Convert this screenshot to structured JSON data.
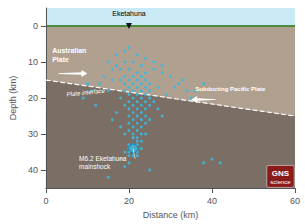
{
  "chart_data": {
    "type": "scatter",
    "x_label": "Distance (km)",
    "y_label": "Depth (km)",
    "xlim": [
      0,
      60
    ],
    "ylim": [
      45,
      -5
    ],
    "xticks": [
      0,
      20,
      40,
      60
    ],
    "yticks": [
      0,
      10,
      20,
      30,
      40
    ],
    "grid": false,
    "annotations": [
      "Plate interface",
      "Australian\nPlate",
      "Subducting Pacific Plate",
      "Eketahuna",
      "M6.2 Eketahuna\nmainshock",
      "GNS",
      "science"
    ],
    "series": [
      {
        "type": "scatter",
        "color": "#3ab8e0",
        "marker": "circle",
        "x": [
          20,
          22,
          19,
          21,
          23,
          18,
          20,
          22,
          24,
          19,
          21,
          23,
          20,
          22,
          24,
          18,
          25,
          19,
          21,
          23,
          20,
          22,
          24,
          21,
          23,
          25,
          19,
          20,
          22,
          24,
          21,
          23,
          25,
          20,
          22,
          24,
          19,
          21,
          23,
          25,
          20,
          22,
          24,
          21,
          23,
          20,
          22,
          24,
          21,
          23,
          25,
          20,
          22,
          24,
          21,
          23,
          20,
          22,
          21,
          23,
          22,
          21,
          22,
          21,
          22,
          20,
          21,
          22,
          20,
          23,
          21,
          22,
          20,
          19,
          21,
          22,
          20,
          30,
          32,
          28,
          26,
          34,
          27,
          29,
          31,
          33,
          35,
          36,
          38,
          15,
          16,
          14,
          13,
          17,
          16,
          15,
          40,
          42,
          38,
          25,
          15,
          10,
          11,
          9,
          12,
          17,
          19,
          24,
          26,
          28,
          18,
          26,
          27,
          28,
          17,
          16,
          18,
          19,
          23,
          24,
          22,
          20,
          18,
          19
        ],
        "values": [
          6,
          8,
          10,
          10,
          11,
          12,
          12,
          13,
          13,
          14,
          14,
          14,
          15,
          15,
          15,
          15,
          16,
          16,
          16,
          16,
          17,
          17,
          17,
          18,
          18,
          18,
          18,
          19,
          19,
          19,
          20,
          20,
          20,
          21,
          21,
          21,
          22,
          22,
          22,
          22,
          23,
          23,
          23,
          24,
          24,
          25,
          25,
          25,
          26,
          26,
          26,
          27,
          27,
          27,
          28,
          28,
          29,
          29,
          30,
          30,
          31,
          31,
          32,
          33,
          33,
          33,
          34,
          34,
          34,
          34,
          35,
          35,
          35,
          35,
          36,
          36,
          36,
          14,
          16,
          13,
          12,
          18,
          17,
          19,
          17,
          15,
          20,
          18,
          16,
          10,
          12,
          14,
          16,
          11,
          15,
          18,
          37,
          38,
          38,
          40,
          42,
          16,
          18,
          20,
          22,
          8,
          7,
          9,
          10,
          11,
          20,
          21,
          23,
          25,
          24,
          26,
          28,
          30,
          32,
          30,
          36,
          38,
          37,
          39
        ]
      },
      {
        "type": "scatter",
        "color": "#3ab8e0",
        "marker": "circle",
        "x": [
          21
        ],
        "values": [
          34
        ]
      },
      {
        "type": "line",
        "color": "#ffffff",
        "line_style": "dashed",
        "x": [
          0,
          60
        ],
        "values": [
          15,
          25
        ]
      },
      {
        "type": "scatter",
        "color": "#000000",
        "marker": "triangle_down",
        "x": [
          20
        ],
        "values": [
          0
        ]
      }
    ]
  }
}
